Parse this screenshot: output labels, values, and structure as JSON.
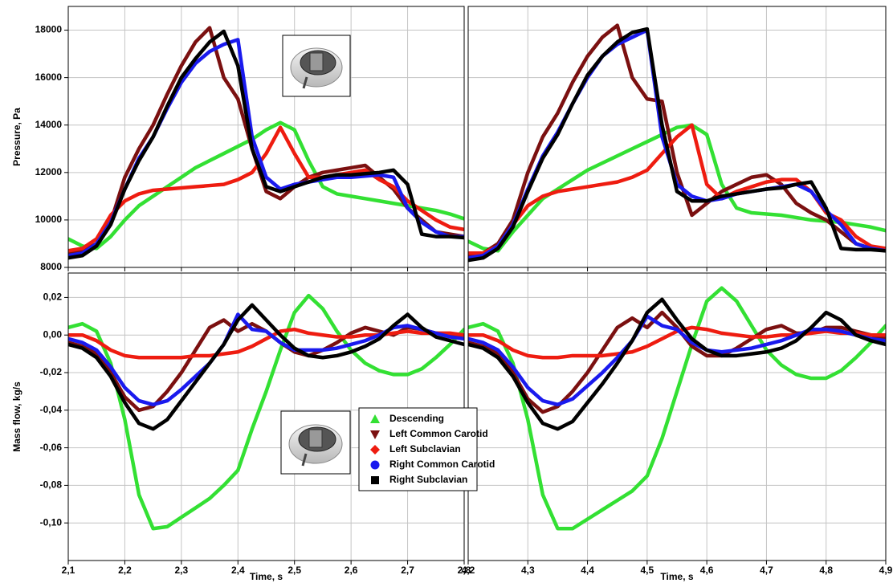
{
  "chart_data": [
    {
      "type": "line",
      "ylabel": "Pressure, Pa",
      "grid": true,
      "x": [
        2.1,
        2.125,
        2.15,
        2.175,
        2.2,
        2.225,
        2.25,
        2.275,
        2.3,
        2.325,
        2.35,
        2.375,
        2.4,
        2.425,
        2.45,
        2.475,
        2.5,
        2.525,
        2.55,
        2.575,
        2.6,
        2.625,
        2.65,
        2.675,
        2.7,
        2.725,
        2.75,
        2.775,
        2.8
      ],
      "xlim": [
        2.1,
        2.8
      ],
      "xticks": [
        2.1,
        2.2,
        2.3,
        2.4,
        2.5,
        2.6,
        2.7,
        2.8
      ],
      "ylim": [
        8000,
        19000
      ],
      "yticks": [
        8000,
        10000,
        12000,
        14000,
        16000,
        18000
      ],
      "series": [
        {
          "color": "#33e033",
          "values": [
            9200,
            8900,
            8800,
            9300,
            10000,
            10600,
            11000,
            11400,
            11800,
            12200,
            12500,
            12800,
            13100,
            13400,
            13800,
            14100,
            13800,
            12500,
            11400,
            11100,
            11000,
            10900,
            10800,
            10700,
            10600,
            10500,
            10400,
            10250,
            10050
          ]
        },
        {
          "color": "#7b1010",
          "values": [
            8600,
            8700,
            9000,
            9900,
            11800,
            13000,
            14000,
            15300,
            16500,
            17500,
            18100,
            16000,
            15100,
            13000,
            11200,
            10900,
            11400,
            11800,
            12000,
            12100,
            12200,
            12300,
            11800,
            11300,
            10500,
            10000,
            9500,
            9400,
            9300
          ]
        },
        {
          "color": "#ee1c10",
          "values": [
            8700,
            8800,
            9200,
            10200,
            10800,
            11100,
            11250,
            11300,
            11350,
            11400,
            11450,
            11500,
            11700,
            12000,
            12800,
            13900,
            12800,
            11800,
            11800,
            11900,
            12000,
            12100,
            11700,
            11400,
            10800,
            10400,
            10000,
            9700,
            9600
          ]
        },
        {
          "color": "#1a1aee",
          "values": [
            8500,
            8600,
            9000,
            9900,
            11300,
            12600,
            13500,
            14700,
            15800,
            16600,
            17100,
            17400,
            17600,
            13500,
            11800,
            11300,
            11500,
            11600,
            11700,
            11800,
            11800,
            11850,
            11900,
            11800,
            10500,
            9900,
            9500,
            9300,
            9300
          ]
        },
        {
          "color": "#000000",
          "values": [
            8400,
            8500,
            8900,
            9800,
            11300,
            12500,
            13500,
            14800,
            16000,
            16800,
            17500,
            17950,
            16500,
            13000,
            11400,
            11200,
            11400,
            11600,
            11800,
            11900,
            11900,
            11950,
            12000,
            12100,
            11500,
            9400,
            9300,
            9300,
            9250
          ]
        }
      ]
    },
    {
      "type": "line",
      "grid": true,
      "x": [
        4.2,
        4.225,
        4.25,
        4.275,
        4.3,
        4.325,
        4.35,
        4.375,
        4.4,
        4.425,
        4.45,
        4.475,
        4.5,
        4.525,
        4.55,
        4.575,
        4.6,
        4.625,
        4.65,
        4.675,
        4.7,
        4.725,
        4.75,
        4.775,
        4.8,
        4.825,
        4.85,
        4.875,
        4.9
      ],
      "xlim": [
        4.2,
        4.9
      ],
      "xticks": [
        4.2,
        4.3,
        4.4,
        4.5,
        4.6,
        4.7,
        4.8,
        4.9
      ],
      "ylim": [
        8000,
        19000
      ],
      "yticks": [
        8000,
        10000,
        12000,
        14000,
        16000,
        18000
      ],
      "series": [
        {
          "color": "#33e033",
          "values": [
            9100,
            8800,
            8700,
            9500,
            10200,
            10900,
            11300,
            11700,
            12100,
            12400,
            12700,
            13000,
            13300,
            13600,
            13900,
            14000,
            13600,
            11500,
            10500,
            10300,
            10250,
            10200,
            10100,
            10000,
            9950,
            9900,
            9800,
            9700,
            9550
          ]
        },
        {
          "color": "#7b1010",
          "values": [
            8500,
            8600,
            9000,
            10000,
            12000,
            13500,
            14500,
            15800,
            16900,
            17700,
            18200,
            16000,
            15100,
            15000,
            12000,
            10200,
            10700,
            11200,
            11500,
            11800,
            11900,
            11500,
            10700,
            10300,
            10000,
            9500,
            9000,
            8800,
            8700
          ]
        },
        {
          "color": "#ee1c10",
          "values": [
            8600,
            8600,
            8900,
            9800,
            10600,
            11000,
            11200,
            11300,
            11400,
            11500,
            11600,
            11800,
            12100,
            12800,
            13500,
            14000,
            11500,
            10900,
            11200,
            11400,
            11600,
            11700,
            11700,
            11200,
            10300,
            10000,
            9300,
            8900,
            8800
          ]
        },
        {
          "color": "#1a1aee",
          "values": [
            8400,
            8500,
            8900,
            9800,
            11300,
            12700,
            13700,
            14900,
            16000,
            16900,
            17400,
            17700,
            18000,
            13500,
            11500,
            11000,
            10800,
            10900,
            11100,
            11200,
            11300,
            11400,
            11500,
            11200,
            10400,
            9800,
            9000,
            8800,
            8700
          ]
        },
        {
          "color": "#000000",
          "values": [
            8300,
            8400,
            8800,
            9700,
            11200,
            12600,
            13600,
            14900,
            16100,
            16900,
            17500,
            17900,
            18050,
            14000,
            11200,
            10800,
            10800,
            11000,
            11100,
            11200,
            11300,
            11350,
            11500,
            11600,
            10500,
            8800,
            8750,
            8750,
            8700
          ]
        }
      ]
    },
    {
      "type": "line",
      "ylabel": "Mass flow, kg/s",
      "xlabel": "Time, s",
      "grid": true,
      "legend": "lower right",
      "x": [
        2.1,
        2.125,
        2.15,
        2.175,
        2.2,
        2.225,
        2.25,
        2.275,
        2.3,
        2.325,
        2.35,
        2.375,
        2.4,
        2.425,
        2.45,
        2.475,
        2.5,
        2.525,
        2.55,
        2.575,
        2.6,
        2.625,
        2.65,
        2.675,
        2.7,
        2.725,
        2.75,
        2.775,
        2.8
      ],
      "xlim": [
        2.1,
        2.8
      ],
      "xticks": [
        {
          "value": 2.1,
          "label": "2,1"
        },
        {
          "value": 2.2,
          "label": "2,2"
        },
        {
          "value": 2.3,
          "label": "2,3"
        },
        {
          "value": 2.4,
          "label": "2,4"
        },
        {
          "value": 2.5,
          "label": "2,5"
        },
        {
          "value": 2.6,
          "label": "2,6"
        },
        {
          "value": 2.7,
          "label": "2,7"
        },
        {
          "value": 2.8,
          "label": "2,8"
        }
      ],
      "ylim": [
        -0.12,
        0.033
      ],
      "yticks": [
        {
          "value": -0.1,
          "label": "-0,10"
        },
        {
          "value": -0.08,
          "label": "-0,08"
        },
        {
          "value": -0.06,
          "label": "-0,06"
        },
        {
          "value": -0.04,
          "label": "-0,04"
        },
        {
          "value": -0.02,
          "label": "-0,02"
        },
        {
          "value": 0,
          "label": "0,00"
        },
        {
          "value": 0.02,
          "label": "0,02"
        }
      ],
      "series": [
        {
          "name": "Descending",
          "color": "#33e033",
          "marker": "triangle-up",
          "values": [
            0.004,
            0.006,
            0.002,
            -0.015,
            -0.045,
            -0.085,
            -0.103,
            -0.102,
            -0.097,
            -0.092,
            -0.087,
            -0.08,
            -0.072,
            -0.05,
            -0.03,
            -0.008,
            0.012,
            0.021,
            0.014,
            0.002,
            -0.008,
            -0.015,
            -0.019,
            -0.021,
            -0.021,
            -0.018,
            -0.012,
            -0.005,
            0.003
          ]
        },
        {
          "name": "Left Common Carotid",
          "color": "#7b1010",
          "marker": "triangle-down",
          "values": [
            -0.004,
            -0.006,
            -0.01,
            -0.02,
            -0.033,
            -0.04,
            -0.038,
            -0.03,
            -0.02,
            -0.008,
            0.004,
            0.008,
            0.002,
            0.006,
            0.002,
            -0.004,
            -0.009,
            -0.011,
            -0.008,
            -0.004,
            0.001,
            0.004,
            0.002,
            0,
            0.004,
            0.003,
            0.001,
            0,
            -0.002
          ]
        },
        {
          "name": "Left Subclavian",
          "color": "#ee1c10",
          "marker": "diamond",
          "values": [
            0,
            0,
            -0.003,
            -0.008,
            -0.011,
            -0.012,
            -0.012,
            -0.012,
            -0.012,
            -0.011,
            -0.011,
            -0.01,
            -0.009,
            -0.006,
            -0.002,
            0.002,
            0.003,
            0.001,
            0,
            -0.001,
            -0.001,
            0,
            0,
            0.001,
            0.002,
            0.001,
            0.001,
            0.001,
            0
          ]
        },
        {
          "name": "Right Common Carotid",
          "color": "#1a1aee",
          "marker": "circle",
          "values": [
            -0.002,
            -0.004,
            -0.008,
            -0.017,
            -0.028,
            -0.035,
            -0.037,
            -0.035,
            -0.029,
            -0.022,
            -0.015,
            -0.005,
            0.011,
            0.003,
            0.002,
            -0.004,
            -0.008,
            -0.008,
            -0.008,
            -0.007,
            -0.005,
            -0.003,
            0,
            0.004,
            0.005,
            0.003,
            0.001,
            -0.001,
            -0.002
          ]
        },
        {
          "name": "Right Subclavian",
          "color": "#000000",
          "marker": "square",
          "values": [
            -0.005,
            -0.007,
            -0.012,
            -0.022,
            -0.036,
            -0.047,
            -0.05,
            -0.045,
            -0.035,
            -0.025,
            -0.015,
            -0.005,
            0.008,
            0.016,
            0.008,
            0,
            -0.007,
            -0.011,
            -0.012,
            -0.011,
            -0.009,
            -0.006,
            -0.002,
            0.005,
            0.011,
            0.004,
            -0.001,
            -0.003,
            -0.005
          ]
        }
      ]
    },
    {
      "type": "line",
      "xlabel": "Time, s",
      "grid": true,
      "x": [
        4.2,
        4.225,
        4.25,
        4.275,
        4.3,
        4.325,
        4.35,
        4.375,
        4.4,
        4.425,
        4.45,
        4.475,
        4.5,
        4.525,
        4.55,
        4.575,
        4.6,
        4.625,
        4.65,
        4.675,
        4.7,
        4.725,
        4.75,
        4.775,
        4.8,
        4.825,
        4.85,
        4.875,
        4.9
      ],
      "xlim": [
        4.2,
        4.9
      ],
      "xticks": [
        {
          "value": 4.2,
          "label": "4,2"
        },
        {
          "value": 4.3,
          "label": "4,3"
        },
        {
          "value": 4.4,
          "label": "4,4"
        },
        {
          "value": 4.5,
          "label": "4,5"
        },
        {
          "value": 4.6,
          "label": "4,6"
        },
        {
          "value": 4.7,
          "label": "4,7"
        },
        {
          "value": 4.8,
          "label": "4,8"
        },
        {
          "value": 4.9,
          "label": "4,9"
        }
      ],
      "ylim": [
        -0.12,
        0.033
      ],
      "yticks": [
        -0.1,
        -0.08,
        -0.06,
        -0.04,
        -0.02,
        0,
        0.02
      ],
      "series": [
        {
          "color": "#33e033",
          "values": [
            0.004,
            0.006,
            0.002,
            -0.015,
            -0.045,
            -0.085,
            -0.103,
            -0.103,
            -0.098,
            -0.093,
            -0.088,
            -0.083,
            -0.075,
            -0.055,
            -0.03,
            -0.005,
            0.018,
            0.025,
            0.018,
            0.005,
            -0.008,
            -0.016,
            -0.021,
            -0.023,
            -0.023,
            -0.019,
            -0.012,
            -0.004,
            0.005
          ]
        },
        {
          "color": "#7b1010",
          "values": [
            -0.004,
            -0.006,
            -0.01,
            -0.02,
            -0.034,
            -0.041,
            -0.038,
            -0.03,
            -0.02,
            -0.008,
            0.004,
            0.009,
            0.004,
            0.012,
            0.004,
            -0.006,
            -0.011,
            -0.011,
            -0.007,
            -0.002,
            0.003,
            0.005,
            0.001,
            0.001,
            0.004,
            0.004,
            0.002,
            0,
            -0.002
          ]
        },
        {
          "color": "#ee1c10",
          "values": [
            0,
            0,
            -0.003,
            -0.008,
            -0.011,
            -0.012,
            -0.012,
            -0.011,
            -0.011,
            -0.011,
            -0.01,
            -0.009,
            -0.006,
            -0.002,
            0.002,
            0.004,
            0.003,
            0.001,
            0,
            -0.001,
            -0.001,
            0,
            0,
            0.001,
            0.002,
            0.001,
            0.001,
            0,
            0
          ]
        },
        {
          "color": "#1a1aee",
          "values": [
            -0.002,
            -0.004,
            -0.008,
            -0.017,
            -0.028,
            -0.035,
            -0.037,
            -0.034,
            -0.027,
            -0.02,
            -0.012,
            -0.003,
            0.01,
            0.005,
            0.003,
            -0.004,
            -0.008,
            -0.009,
            -0.008,
            -0.007,
            -0.005,
            -0.003,
            0,
            0.003,
            0.003,
            0.002,
            0,
            -0.002,
            -0.003
          ]
        },
        {
          "color": "#000000",
          "values": [
            -0.005,
            -0.007,
            -0.012,
            -0.022,
            -0.036,
            -0.047,
            -0.05,
            -0.046,
            -0.036,
            -0.026,
            -0.015,
            -0.003,
            0.012,
            0.019,
            0.008,
            -0.002,
            -0.008,
            -0.011,
            -0.011,
            -0.01,
            -0.009,
            -0.007,
            -0.003,
            0.004,
            0.012,
            0.008,
            0,
            -0.003,
            -0.005
          ]
        }
      ]
    }
  ]
}
